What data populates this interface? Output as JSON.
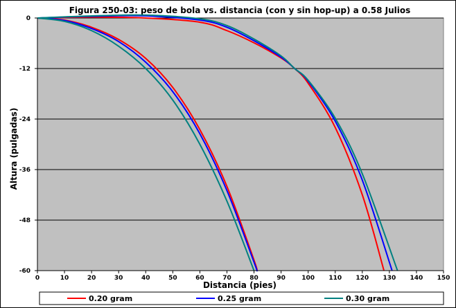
{
  "chart_data": {
    "type": "line",
    "title": "Figura 250-03: peso de bola vs. distancia (con y sin hop-up) a 0.58 Julios",
    "xlabel": "Distancia (pies)",
    "ylabel": "Altura (pulgadas)",
    "xlim": [
      0,
      150
    ],
    "ylim": [
      -60,
      0
    ],
    "x_ticks": [
      0,
      10,
      20,
      30,
      40,
      50,
      60,
      70,
      80,
      90,
      100,
      110,
      120,
      130,
      140,
      150
    ],
    "y_ticks": [
      0,
      -12,
      -24,
      -36,
      -48,
      -60
    ],
    "grid": "horizontal",
    "plot_background": "#c0c0c0",
    "legend_position": "bottom",
    "series": [
      {
        "name": "0.20 gram",
        "color": "#ff0000",
        "curves": [
          {
            "hop_up": false,
            "x": [
              0,
              10,
              20,
              30,
              40,
              50,
              60,
              70,
              80,
              81
            ],
            "y": [
              0,
              -0.5,
              -2.2,
              -5.1,
              -9.6,
              -16.5,
              -26.5,
              -40.0,
              -57.5,
              -60
            ]
          },
          {
            "hop_up": true,
            "x": [
              0,
              20,
              40,
              60,
              70,
              80,
              90,
              95,
              100,
              110,
              120,
              128
            ],
            "y": [
              0,
              0.2,
              0,
              -1.0,
              -3.0,
              -5.9,
              -9.5,
              -12,
              -15.5,
              -26.0,
              -42.0,
              -60
            ]
          }
        ]
      },
      {
        "name": "0.25 gram",
        "color": "#0000ff",
        "curves": [
          {
            "hop_up": false,
            "x": [
              0,
              10,
              20,
              30,
              40,
              50,
              60,
              70,
              80,
              81
            ],
            "y": [
              0,
              -0.6,
              -2.5,
              -5.6,
              -10.5,
              -17.5,
              -27.5,
              -41.0,
              -58.0,
              -60
            ]
          },
          {
            "hop_up": true,
            "x": [
              0,
              20,
              40,
              60,
              70,
              80,
              90,
              95,
              100,
              110,
              120,
              131
            ],
            "y": [
              0,
              0.4,
              0.5,
              -0.5,
              -2.2,
              -5.4,
              -9.3,
              -12,
              -15.0,
              -24.5,
              -38.5,
              -60
            ]
          }
        ]
      },
      {
        "name": "0.30 gram",
        "color": "#008080",
        "curves": [
          {
            "hop_up": false,
            "x": [
              0,
              10,
              20,
              30,
              40,
              50,
              60,
              70,
              80
            ],
            "y": [
              0,
              -0.8,
              -3.0,
              -6.7,
              -12.0,
              -19.5,
              -30.0,
              -43.5,
              -60
            ]
          },
          {
            "hop_up": true,
            "x": [
              0,
              20,
              40,
              60,
              70,
              80,
              90,
              95,
              100,
              110,
              120,
              133
            ],
            "y": [
              0,
              0.5,
              0.7,
              -0.2,
              -1.8,
              -5.0,
              -9.0,
              -12,
              -14.8,
              -23.8,
              -37.0,
              -60
            ]
          }
        ]
      }
    ]
  }
}
